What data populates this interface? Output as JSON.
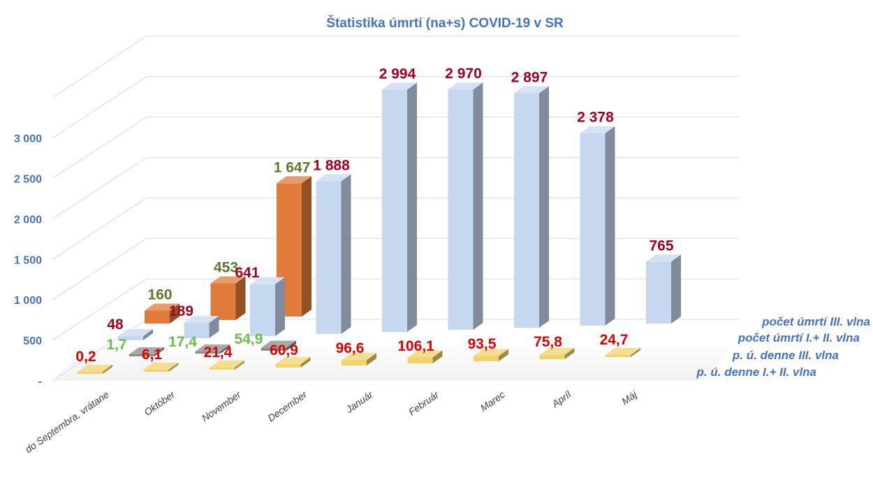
{
  "chart_data": {
    "type": "bar",
    "title": "Štatistika úmrtí (na+s) COVID-19 v SR",
    "categories": [
      "do Septembra, vrátane",
      "Október",
      "November",
      "December",
      "Január",
      "Február",
      "Marec",
      "Apríl",
      "Máj"
    ],
    "y_ticks": [
      "-",
      "500",
      "1 000",
      "1 500",
      "2 000",
      "2 500",
      "3 000"
    ],
    "ylim": [
      0,
      3500
    ],
    "grid": true,
    "legend": "right",
    "series": [
      {
        "name": "počet úmrtí III. vlna",
        "color": "#c5d8f0",
        "values": [
          48,
          189,
          641,
          1888,
          2994,
          2970,
          2897,
          2378,
          765
        ],
        "labels": [
          "48",
          "189",
          "641",
          "1 888",
          "2 994",
          "2 970",
          "2 897",
          "2 378",
          "765"
        ],
        "label_color": "#a50021"
      },
      {
        "name": "počet úmrtí I.+ II. vlna",
        "color": "#e07b39",
        "values": [
          160,
          453,
          1647,
          null,
          null,
          null,
          null,
          null,
          null
        ],
        "labels": [
          "160",
          "453",
          "1 647",
          "",
          "",
          "",
          "",
          "",
          ""
        ],
        "label_color": "#5a7a28"
      },
      {
        "name": "p. ú. denne III. vlna",
        "color": "#8c8c8c",
        "values": [
          1.7,
          17.4,
          54.9,
          null,
          null,
          null,
          null,
          null,
          null
        ],
        "labels": [
          "1,7",
          "17,4",
          "54,9",
          "",
          "",
          "",
          "",
          "",
          ""
        ],
        "label_color": "#6abf4b"
      },
      {
        "name": "p. ú. denne I.+ II. vlna",
        "color": "#f2d36b",
        "values": [
          0.2,
          6.1,
          21.4,
          60.9,
          96.6,
          106.1,
          93.5,
          75.8,
          24.7
        ],
        "labels": [
          "0,2",
          "6,1",
          "21,4",
          "60,9",
          "96,6",
          "106,1",
          "93,5",
          "75,8",
          "24,7"
        ],
        "label_color": "#e00000"
      }
    ]
  }
}
